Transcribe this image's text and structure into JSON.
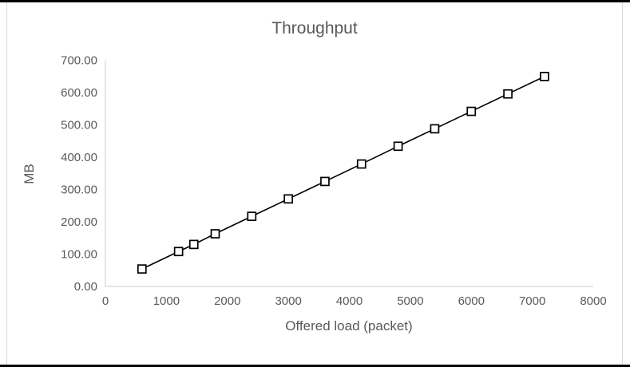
{
  "window": {
    "frame_color": "#000000",
    "border_color": "#d9d9d9",
    "background": "#ffffff"
  },
  "chart_data": {
    "type": "line",
    "title": "Throughput",
    "xlabel": "Offered load (packet)",
    "ylabel": "MB",
    "x": [
      600,
      1200,
      1450,
      1800,
      2400,
      3000,
      3600,
      4200,
      4800,
      5400,
      6000,
      6600,
      7200
    ],
    "y": [
      54,
      108,
      130,
      163,
      217,
      271,
      325,
      379,
      434,
      488,
      542,
      596,
      650
    ],
    "xlim": [
      0,
      8000
    ],
    "ylim": [
      0,
      700
    ],
    "x_tick_step": 1000,
    "y_tick_step": 100,
    "x_tick_labels": [
      "0",
      "1000",
      "2000",
      "3000",
      "4000",
      "5000",
      "6000",
      "7000",
      "8000"
    ],
    "y_tick_labels": [
      "0.00",
      "100.00",
      "200.00",
      "300.00",
      "400.00",
      "500.00",
      "600.00",
      "700.00"
    ],
    "grid": false,
    "legend": false,
    "marker": "square-open",
    "line_color": "#000000",
    "marker_fill": "#ffffff",
    "marker_stroke": "#000000",
    "axis_line_color": "#d6d6d6",
    "text_color": "#595959"
  }
}
